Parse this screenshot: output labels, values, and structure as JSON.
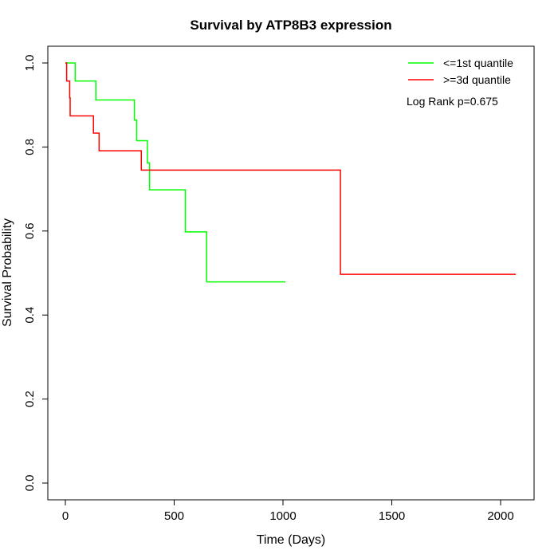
{
  "chart_data": {
    "type": "line",
    "step": true,
    "title": "Survival by ATP8B3 expression",
    "xlabel": "Time (Days)",
    "ylabel": "Survival Probability",
    "xlim": [
      0,
      2000
    ],
    "ylim": [
      0,
      1
    ],
    "xticks": [
      0,
      500,
      1000,
      1500,
      2000
    ],
    "yticks": [
      "0.0",
      "0.2",
      "0.4",
      "0.6",
      "0.8",
      "1.0"
    ],
    "grid": false,
    "legend_position": "top-right",
    "annotation": "Log Rank p=0.675",
    "series": [
      {
        "name": "<=1st quantile",
        "color": "#00ff00",
        "x": [
          0,
          45,
          140,
          317,
          328,
          377,
          387,
          551,
          649,
          1011
        ],
        "y": [
          1.0,
          0.957,
          0.912,
          0.864,
          0.815,
          0.762,
          0.698,
          0.598,
          0.479,
          0.479
        ]
      },
      {
        "name": ">=3d quantile",
        "color": "#ff0000",
        "x": [
          0,
          6,
          20,
          22,
          129,
          155,
          349,
          1264,
          2070
        ],
        "y": [
          1.0,
          0.957,
          0.917,
          0.874,
          0.833,
          0.791,
          0.745,
          0.497,
          0.497
        ]
      }
    ]
  }
}
